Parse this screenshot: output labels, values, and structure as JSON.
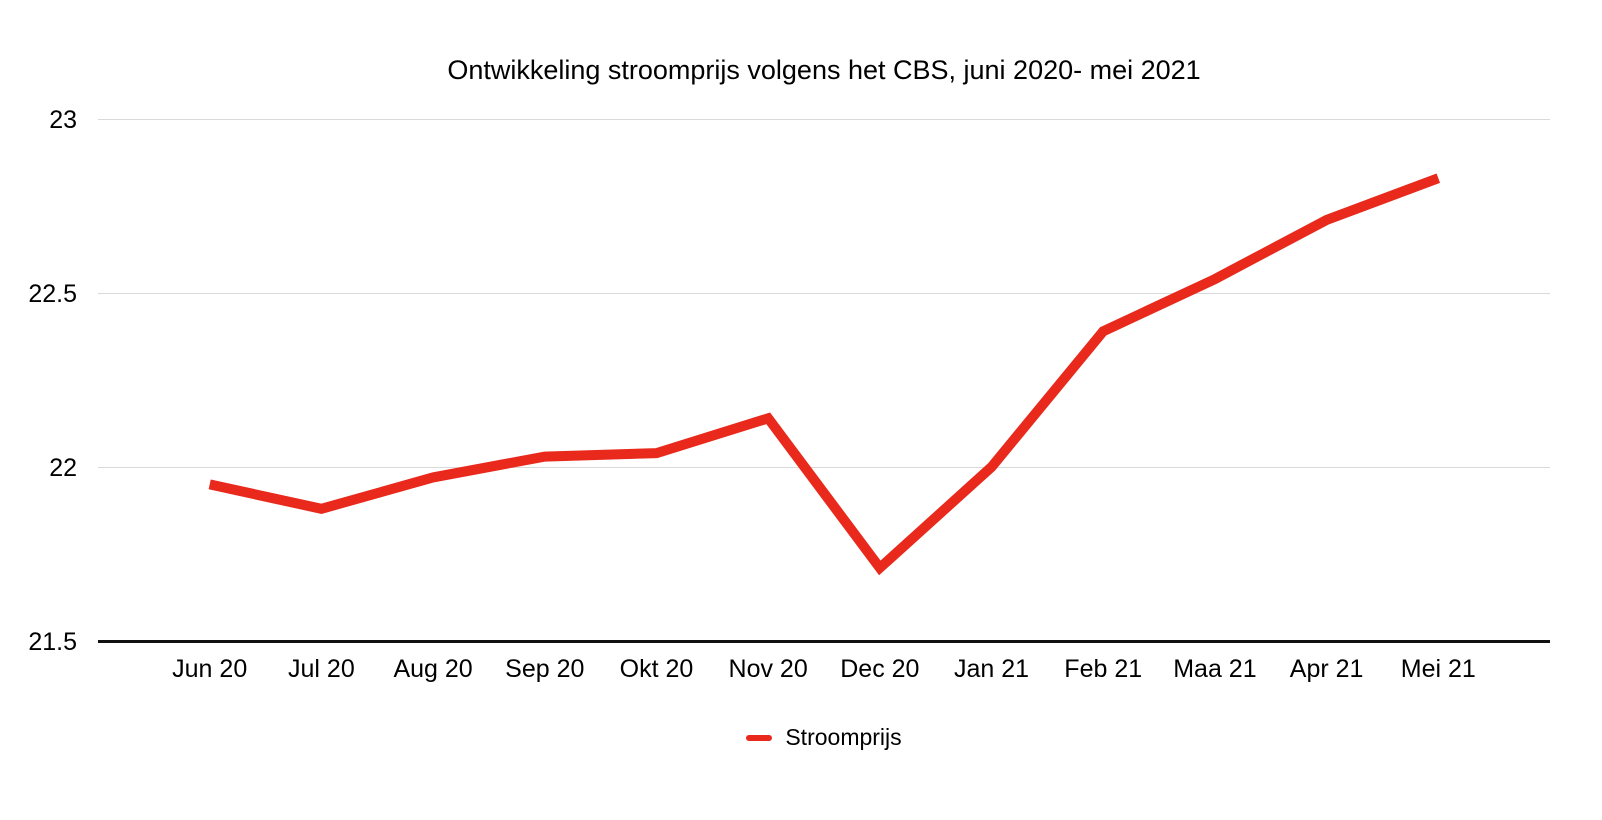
{
  "page": {
    "background": "#ffffff"
  },
  "chart_data": {
    "type": "line",
    "title": "Ontwikkeling stroomprijs volgens het CBS, juni 2020- mei 2021",
    "categories": [
      "Jun 20",
      "Jul 20",
      "Aug 20",
      "Sep 20",
      "Okt 20",
      "Nov 20",
      "Dec 20",
      "Jan 21",
      "Feb 21",
      "Maa 21",
      "Apr 21",
      "Mei 21"
    ],
    "series": [
      {
        "name": "Stroomprijs",
        "color": "#e8291c",
        "values": [
          21.95,
          21.88,
          21.97,
          22.03,
          22.04,
          22.14,
          21.71,
          22.0,
          22.39,
          22.54,
          22.71,
          22.83
        ]
      }
    ],
    "xlabel": "",
    "ylabel": "",
    "ylim": [
      21.5,
      23
    ],
    "y_ticks": [
      21.5,
      22,
      22.5,
      23
    ],
    "grid": true,
    "legend_position": "bottom",
    "colors": {
      "gridline": "#d9d9d9",
      "axis_line": "#111111",
      "tick_text": "#000000"
    }
  }
}
